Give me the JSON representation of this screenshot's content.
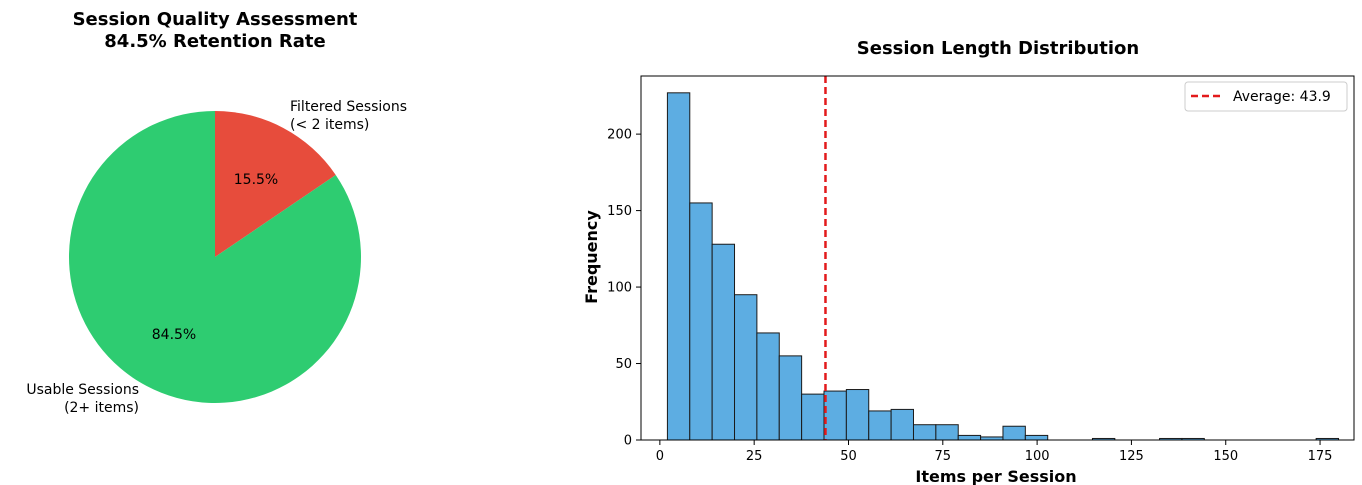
{
  "chart_data": [
    {
      "type": "pie",
      "title": "Session Quality Assessment",
      "subtitle": "84.5% Retention Rate",
      "slices": [
        {
          "label_line1": "Usable Sessions",
          "label_line2": "(2+ items)",
          "value": 84.5,
          "pct_label": "84.5%",
          "color": "#2ecc71"
        },
        {
          "label_line1": "Filtered Sessions",
          "label_line2": "(< 2 items)",
          "value": 15.5,
          "pct_label": "15.5%",
          "color": "#e74c3c"
        }
      ],
      "start_angle_deg": 90,
      "direction": "clockwise"
    },
    {
      "type": "bar",
      "subtype": "histogram",
      "title": "Session Length Distribution",
      "xlabel": "Items per Session",
      "ylabel": "Frequency",
      "xlim": [
        -5,
        184
      ],
      "ylim": [
        0,
        238
      ],
      "xticks": [
        0,
        25,
        50,
        75,
        100,
        125,
        150,
        175
      ],
      "yticks": [
        0,
        50,
        100,
        150,
        200
      ],
      "bar_color": "#5dade2",
      "bin_start": 2,
      "bin_width": 5.93,
      "values": [
        227,
        155,
        128,
        95,
        70,
        55,
        30,
        32,
        33,
        19,
        20,
        10,
        10,
        3,
        2,
        9,
        3,
        0,
        0,
        1,
        0,
        0,
        1,
        1,
        0,
        0,
        0,
        0,
        0,
        1
      ],
      "reference_line": {
        "x": 43.9,
        "label": "Average: 43.9",
        "color": "#e31a1c"
      },
      "legend_position": "top-right"
    }
  ]
}
